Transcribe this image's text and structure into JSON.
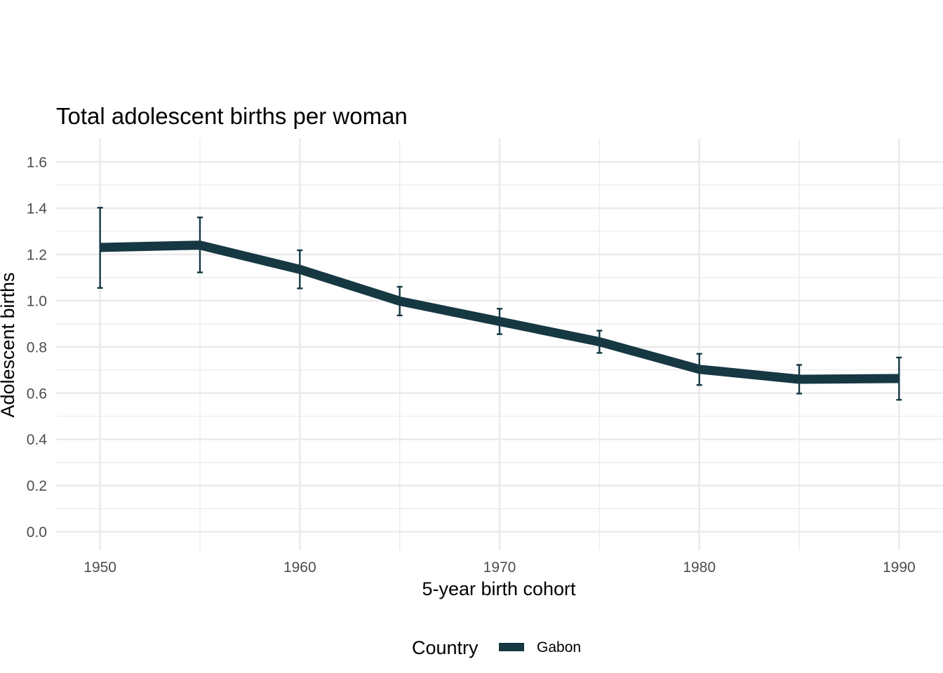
{
  "chart_data": {
    "type": "line",
    "title": "Total adolescent births per woman",
    "xlabel": "5-year birth cohort",
    "ylabel": "Adolescent births",
    "x": [
      1950,
      1955,
      1960,
      1965,
      1970,
      1975,
      1980,
      1985,
      1990
    ],
    "x_ticks": [
      1950,
      1960,
      1970,
      1980,
      1990
    ],
    "x_tick_labels": [
      "1950",
      "1960",
      "1970",
      "1980",
      "1990"
    ],
    "xlim": [
      1947.8,
      1992.2
    ],
    "y_ticks": [
      0.0,
      0.2,
      0.4,
      0.6,
      0.8,
      1.0,
      1.2,
      1.4,
      1.6
    ],
    "y_tick_labels": [
      "0.0",
      "0.2",
      "0.4",
      "0.6",
      "0.8",
      "1.0",
      "1.2",
      "1.4",
      "1.6"
    ],
    "ylim": [
      -0.08,
      1.7
    ],
    "grid": true,
    "legend": {
      "title": "Country",
      "position": "bottom"
    },
    "series": [
      {
        "name": "Gabon",
        "color": "#163843",
        "values": [
          1.23,
          1.24,
          1.135,
          0.998,
          0.91,
          0.822,
          0.703,
          0.66,
          0.663
        ],
        "lower": [
          1.055,
          1.122,
          1.053,
          0.936,
          0.855,
          0.774,
          0.635,
          0.598,
          0.571
        ],
        "upper": [
          1.402,
          1.36,
          1.218,
          1.06,
          0.965,
          0.87,
          0.77,
          0.722,
          0.754
        ]
      }
    ]
  }
}
